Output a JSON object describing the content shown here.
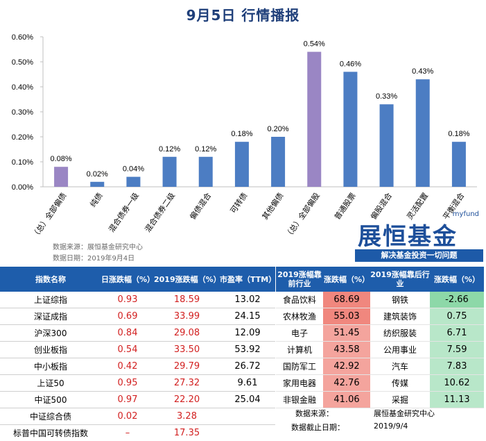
{
  "title": "9月5日  行情播报",
  "chart_data": {
    "type": "bar",
    "categories": [
      "（总）全部偏债",
      "纯债",
      "混合债券一级",
      "混合债券二级",
      "偏债混合",
      "可转债",
      "其他偏债",
      "（总）全部偏股",
      "普通股票",
      "偏股混合",
      "灵活配置",
      "平衡混合"
    ],
    "values": [
      0.08,
      0.02,
      0.04,
      0.12,
      0.12,
      0.18,
      0.2,
      0.54,
      0.46,
      0.33,
      0.43,
      0.18
    ],
    "data_labels": [
      "0.08%",
      "0.02%",
      "0.04%",
      "0.12%",
      "0.12%",
      "0.18%",
      "0.20%",
      "0.54%",
      "0.46%",
      "0.33%",
      "0.43%",
      "0.18%"
    ],
    "bar_colors": [
      "#9a86c4",
      "#4c7dc3",
      "#4c7dc3",
      "#4c7dc3",
      "#4c7dc3",
      "#4c7dc3",
      "#4c7dc3",
      "#9a86c4",
      "#4c7dc3",
      "#4c7dc3",
      "#4c7dc3",
      "#4c7dc3"
    ],
    "yticks": [
      "0.00%",
      "0.10%",
      "0.20%",
      "0.30%",
      "0.40%",
      "0.50%",
      "0.60%"
    ],
    "ylim": [
      0,
      0.6
    ],
    "grid": false
  },
  "source_note": {
    "line1": "数据来源：展恒基金研究中心",
    "line2": "数据日期：2019年9月4日"
  },
  "logo": {
    "top": "myfund",
    "main": "展恒基金",
    "slogan": "解决基金投资一切问题"
  },
  "index_table": {
    "headers": [
      "指数名称",
      "日涨跌幅（%）",
      "2019涨跌幅（%）",
      "市盈率（TTM）"
    ],
    "rows": [
      [
        "上证综指",
        "0.93",
        "18.59",
        "13.02"
      ],
      [
        "深证成指",
        "0.69",
        "33.99",
        "24.15"
      ],
      [
        "沪深300",
        "0.84",
        "29.08",
        "12.09"
      ],
      [
        "创业板指",
        "0.54",
        "33.50",
        "53.92"
      ],
      [
        "中小板指",
        "0.42",
        "29.79",
        "26.72"
      ],
      [
        "上证50",
        "0.95",
        "27.32",
        "9.61"
      ],
      [
        "中证500",
        "0.97",
        "22.20",
        "25.04"
      ],
      [
        "中证综合债",
        "0.02",
        "3.28",
        ""
      ],
      [
        "标普中国可转债指数",
        "–",
        "17.35",
        ""
      ]
    ]
  },
  "industry_table": {
    "headers": [
      "2019涨幅靠前行业",
      "涨跌幅（%）",
      "2019涨幅靠后行业",
      "涨跌幅（%）"
    ],
    "rows": [
      [
        "食品饮料",
        "68.69",
        "钢铁",
        "-2.66"
      ],
      [
        "农林牧渔",
        "55.03",
        "建筑装饰",
        "0.75"
      ],
      [
        "电子",
        "51.45",
        "纺织服装",
        "6.71"
      ],
      [
        "计算机",
        "43.58",
        "公用事业",
        "7.59"
      ],
      [
        "国防军工",
        "42.92",
        "汽车",
        "7.83"
      ],
      [
        "家用电器",
        "42.76",
        "传媒",
        "10.62"
      ],
      [
        "非银金融",
        "41.06",
        "采掘",
        "11.13"
      ]
    ],
    "footer_source_label": "数据来源：",
    "footer_source_value": "展恒基金研究中心",
    "footer_date_label": "数据截止日期：",
    "footer_date_value": "2019/9/4"
  }
}
